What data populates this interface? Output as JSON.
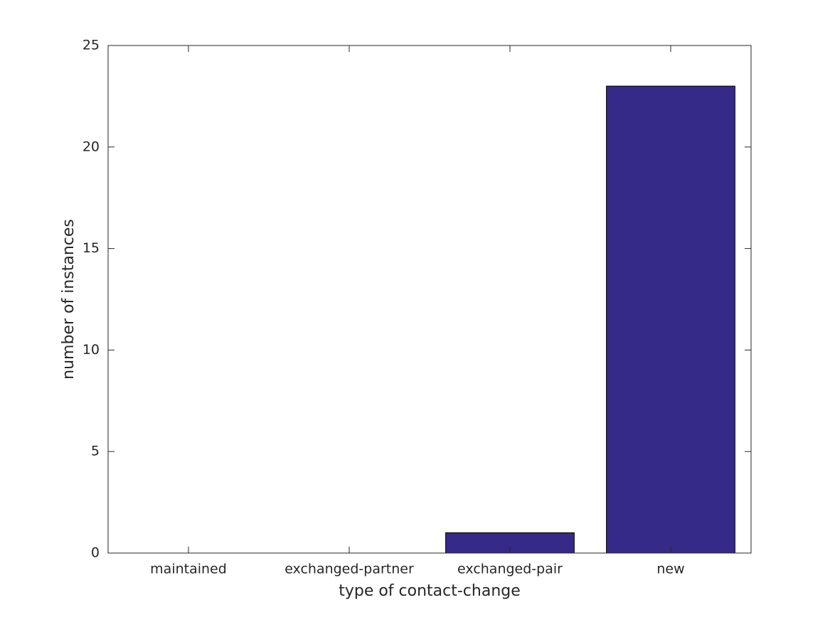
{
  "chart_data": {
    "type": "bar",
    "xlabel": "type of contact-change",
    "ylabel": "number of instances",
    "categories": [
      "maintained",
      "exchanged-partner",
      "exchanged-pair",
      "new"
    ],
    "values": [
      0,
      0,
      1,
      23
    ],
    "color": "#352a87",
    "ylim": [
      0,
      25
    ],
    "yticks": [
      0,
      5,
      10,
      15,
      20,
      25
    ],
    "grid": false
  }
}
